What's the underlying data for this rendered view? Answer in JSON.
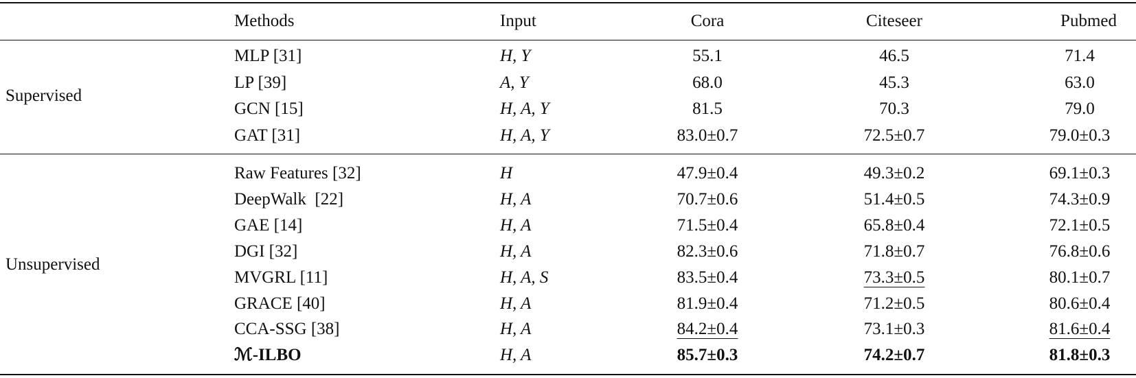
{
  "table": {
    "header": [
      "Methods",
      "Input",
      "Cora",
      "Citeseer",
      "Pubmed"
    ],
    "groups": [
      {
        "label": "Supervised",
        "rows": [
          [
            "MLP [31]",
            "H, Y",
            "55.1",
            "46.5",
            "71.4"
          ],
          [
            "LP [39]",
            "A, Y",
            "68.0",
            "45.3",
            "63.0"
          ],
          [
            "GCN [15]",
            "H, A, Y",
            "81.5",
            "70.3",
            "79.0"
          ],
          [
            "GAT [31]",
            "H, A, Y",
            "83.0±0.7",
            "72.5±0.7",
            "79.0±0.3"
          ]
        ]
      },
      {
        "label": "Unsupervised",
        "rows": [
          [
            "Raw Features [32]",
            "H",
            "47.9±0.4",
            "49.3±0.2",
            "69.1±0.3"
          ],
          [
            "DeepWalk  [22]",
            "H, A",
            "70.7±0.6",
            "51.4±0.5",
            "74.3±0.9"
          ],
          [
            "GAE [14]",
            "H, A",
            "71.5±0.4",
            "65.8±0.4",
            "72.1±0.5"
          ],
          [
            "DGI [32]",
            "H, A",
            "82.3±0.6",
            "71.8±0.7",
            "76.8±0.6"
          ],
          [
            "MVGRL [11]",
            "H, A, S",
            "83.5±0.4",
            "73.3±0.5",
            "80.1±0.7"
          ],
          [
            "GRACE [40]",
            "H, A",
            "81.9±0.4",
            "71.2±0.5",
            "80.6±0.4"
          ],
          [
            "CCA-SSG [38]",
            "H, A",
            "84.2±0.4",
            "73.1±0.3",
            "81.6±0.4"
          ],
          [
            "ℳ-ILBO",
            "H, A",
            "85.7±0.3",
            "74.2±0.7",
            "81.8±0.3"
          ]
        ]
      }
    ]
  }
}
